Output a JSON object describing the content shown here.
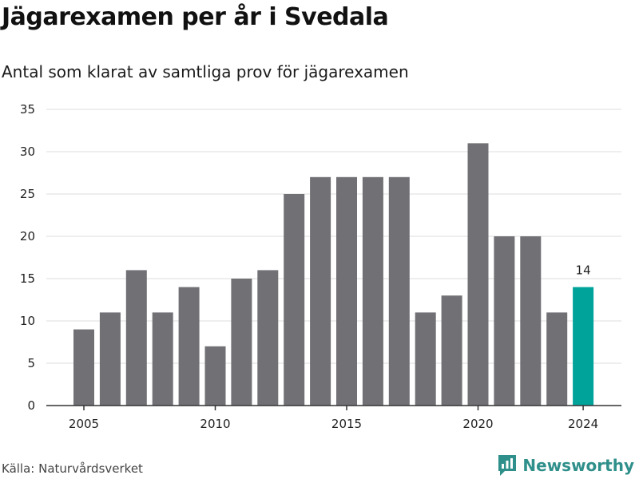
{
  "title": "Jägarexamen per år i Svedala",
  "subtitle": "Antal som klarat av samtliga prov för jägarexamen",
  "source": "Källa: Naturvårdsverket",
  "brand": {
    "name": "Newsworthy",
    "icon": "newsworthy-logo-icon",
    "color": "#2f8f8a"
  },
  "colors": {
    "bar": "#717075",
    "highlight": "#00a39a",
    "grid": "#dddddd",
    "axis": "#333333"
  },
  "chart_data": {
    "type": "bar",
    "title": "Jägarexamen per år i Svedala",
    "subtitle": "Antal som klarat av samtliga prov för jägarexamen",
    "xlabel": "",
    "ylabel": "",
    "categories": [
      2005,
      2006,
      2007,
      2008,
      2009,
      2010,
      2011,
      2012,
      2013,
      2014,
      2015,
      2016,
      2017,
      2018,
      2019,
      2020,
      2021,
      2022,
      2023,
      2024
    ],
    "values": [
      9,
      11,
      16,
      11,
      14,
      7,
      15,
      16,
      25,
      27,
      27,
      27,
      27,
      11,
      13,
      31,
      20,
      20,
      11,
      14
    ],
    "highlight": {
      "category": 2024,
      "label": "14"
    },
    "ylim": [
      0,
      35
    ],
    "yticks": [
      0,
      5,
      10,
      15,
      20,
      25,
      30,
      35
    ],
    "xticks": [
      2005,
      2010,
      2015,
      2020,
      2024
    ],
    "grid": true,
    "legend": "none"
  }
}
